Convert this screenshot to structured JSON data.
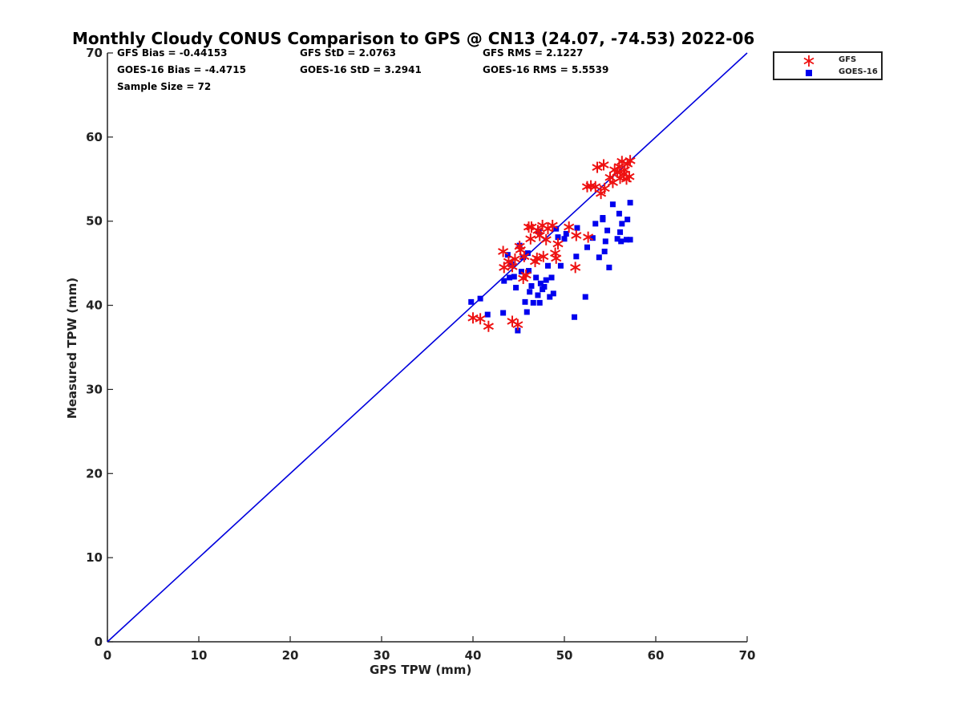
{
  "chart_data": {
    "type": "scatter",
    "title": "Monthly Cloudy CONUS Comparison to GPS @ CN13 (24.07, -74.53) 2022-06",
    "xlabel": "GPS TPW (mm)",
    "ylabel": "Measured TPW (mm)",
    "xlim": [
      0,
      70
    ],
    "ylim": [
      0,
      70
    ],
    "xticks": [
      0,
      10,
      20,
      30,
      40,
      50,
      60,
      70
    ],
    "yticks": [
      0,
      10,
      20,
      30,
      40,
      50,
      60,
      70
    ],
    "grid": false,
    "legend_position": "outside-top-right",
    "reference_line": {
      "x": [
        0,
        70
      ],
      "y": [
        0,
        70
      ],
      "color": "#0000dd"
    },
    "stats": {
      "gfs_bias": "GFS Bias = -0.44153",
      "goes_bias": "GOES-16 Bias = -4.4715",
      "sample_size": "Sample Size = 72",
      "gfs_std": "GFS StD = 2.0763",
      "goes_std": "GOES-16 StD = 3.2941",
      "gfs_rms": "GFS RMS = 2.1227",
      "goes_rms": "GOES-16 RMS = 5.5539"
    },
    "series": [
      {
        "name": "GFS",
        "marker": "asterisk",
        "color": "#ee1111",
        "points": [
          [
            40.0,
            38.5
          ],
          [
            40.8,
            38.4
          ],
          [
            41.7,
            37.5
          ],
          [
            43.3,
            46.4
          ],
          [
            43.4,
            44.5
          ],
          [
            43.9,
            45.2
          ],
          [
            44.3,
            44.6
          ],
          [
            44.6,
            45.5
          ],
          [
            44.3,
            38.1
          ],
          [
            44.9,
            37.7
          ],
          [
            45.1,
            47.0
          ],
          [
            45.2,
            46.6
          ],
          [
            45.5,
            43.2
          ],
          [
            45.6,
            45.8
          ],
          [
            45.8,
            43.6
          ],
          [
            46.1,
            49.3
          ],
          [
            46.3,
            47.9
          ],
          [
            46.8,
            45.2
          ],
          [
            47.0,
            45.6
          ],
          [
            47.1,
            48.9
          ],
          [
            47.3,
            48.3
          ],
          [
            47.6,
            49.5
          ],
          [
            47.7,
            45.8
          ],
          [
            48.0,
            47.8
          ],
          [
            48.2,
            49.1
          ],
          [
            48.7,
            49.5
          ],
          [
            49.0,
            46.2
          ],
          [
            49.1,
            45.6
          ],
          [
            49.3,
            47.3
          ],
          [
            50.5,
            49.3
          ],
          [
            51.2,
            44.5
          ],
          [
            51.3,
            48.3
          ],
          [
            52.5,
            54.1
          ],
          [
            52.6,
            48.1
          ],
          [
            52.9,
            54.2
          ],
          [
            53.4,
            54.1
          ],
          [
            53.6,
            56.4
          ],
          [
            54.0,
            53.3
          ],
          [
            54.3,
            56.7
          ],
          [
            54.4,
            53.9
          ],
          [
            55.0,
            55.2
          ],
          [
            55.3,
            54.6
          ],
          [
            55.5,
            56.1
          ],
          [
            56.0,
            56.5
          ],
          [
            56.1,
            55.1
          ],
          [
            56.3,
            57.1
          ],
          [
            56.5,
            55.6
          ],
          [
            56.6,
            56.1
          ],
          [
            56.8,
            55.0
          ],
          [
            56.9,
            56.8
          ],
          [
            57.1,
            55.3
          ],
          [
            57.2,
            57.2
          ],
          [
            55.8,
            55.8
          ],
          [
            46.4,
            49.3
          ]
        ]
      },
      {
        "name": "GOES-16",
        "marker": "square",
        "color": "#0000ee",
        "points": [
          [
            39.8,
            40.4
          ],
          [
            40.8,
            40.8
          ],
          [
            41.6,
            38.9
          ],
          [
            43.3,
            39.1
          ],
          [
            43.4,
            42.9
          ],
          [
            43.8,
            46.0
          ],
          [
            44.0,
            43.3
          ],
          [
            44.2,
            44.9
          ],
          [
            44.5,
            43.4
          ],
          [
            44.7,
            42.1
          ],
          [
            44.9,
            37.0
          ],
          [
            45.1,
            47.1
          ],
          [
            45.3,
            44.0
          ],
          [
            45.5,
            45.7
          ],
          [
            45.7,
            40.4
          ],
          [
            45.9,
            39.2
          ],
          [
            46.1,
            44.1
          ],
          [
            46.2,
            41.6
          ],
          [
            46.4,
            42.3
          ],
          [
            46.6,
            40.3
          ],
          [
            46.9,
            43.3
          ],
          [
            47.1,
            41.2
          ],
          [
            47.3,
            40.3
          ],
          [
            47.4,
            42.6
          ],
          [
            47.6,
            41.9
          ],
          [
            47.8,
            42.2
          ],
          [
            48.0,
            43.0
          ],
          [
            48.2,
            44.7
          ],
          [
            48.4,
            41.0
          ],
          [
            48.6,
            43.3
          ],
          [
            48.8,
            41.4
          ],
          [
            49.1,
            49.1
          ],
          [
            49.3,
            48.1
          ],
          [
            49.6,
            44.7
          ],
          [
            50.0,
            47.9
          ],
          [
            50.2,
            48.5
          ],
          [
            51.1,
            38.6
          ],
          [
            51.3,
            45.8
          ],
          [
            51.4,
            49.2
          ],
          [
            52.3,
            41.0
          ],
          [
            52.5,
            46.9
          ],
          [
            53.1,
            48.0
          ],
          [
            53.4,
            49.7
          ],
          [
            53.8,
            45.7
          ],
          [
            54.2,
            50.4
          ],
          [
            54.4,
            46.4
          ],
          [
            54.5,
            47.6
          ],
          [
            54.7,
            48.9
          ],
          [
            54.9,
            44.5
          ],
          [
            55.8,
            47.9
          ],
          [
            56.0,
            50.9
          ],
          [
            56.1,
            48.7
          ],
          [
            56.2,
            47.6
          ],
          [
            56.3,
            49.7
          ],
          [
            56.8,
            47.8
          ],
          [
            56.9,
            50.2
          ],
          [
            57.2,
            52.2
          ],
          [
            57.2,
            47.8
          ],
          [
            47.2,
            48.8
          ],
          [
            55.3,
            52.0
          ],
          [
            54.2,
            50.2
          ],
          [
            46.0,
            46.2
          ]
        ]
      }
    ]
  }
}
